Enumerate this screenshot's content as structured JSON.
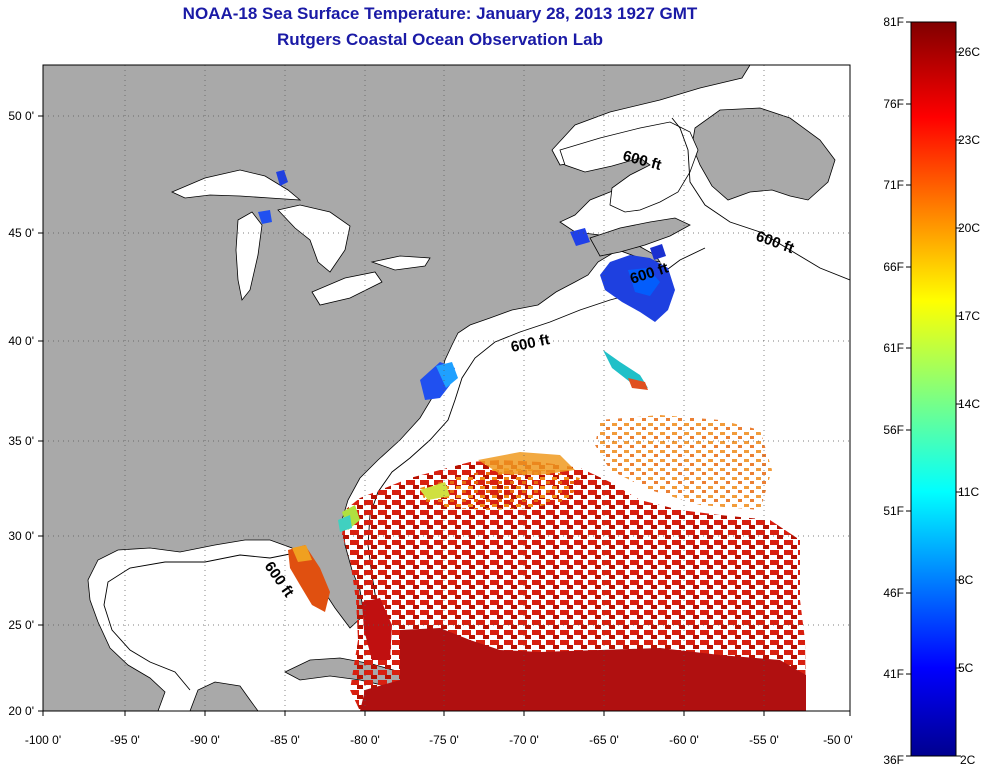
{
  "header": {
    "title": "NOAA-18 Sea Surface Temperature:  January 28, 2013 1927 GMT",
    "subtitle": "Rutgers Coastal Ocean Observation Lab"
  },
  "map": {
    "lon_ticks": [
      "-100 0'",
      "-95 0'",
      "-90 0'",
      "-85 0'",
      "-80 0'",
      "-75 0'",
      "-70 0'",
      "-65 0'",
      "-60 0'",
      "-55 0'",
      "-50 0'"
    ],
    "lat_ticks": [
      "50 0'",
      "45 0'",
      "40 0'",
      "35 0'",
      "30 0'",
      "25 0'",
      "20 0'"
    ],
    "contour_labels": [
      "600 ft",
      "600 ft",
      "600 ft",
      "600 ft",
      "600 ft"
    ],
    "colors": {
      "land": "#a9a9a9",
      "ocean_nodata": "#ffffff"
    }
  },
  "colorbar": {
    "fahrenheit": [
      "81F",
      "76F",
      "71F",
      "66F",
      "61F",
      "56F",
      "51F",
      "46F",
      "41F",
      "36F"
    ],
    "celsius": [
      "26C",
      "23C",
      "20C",
      "17C",
      "14C",
      "11C",
      "8C",
      "5C",
      "2C"
    ]
  }
}
